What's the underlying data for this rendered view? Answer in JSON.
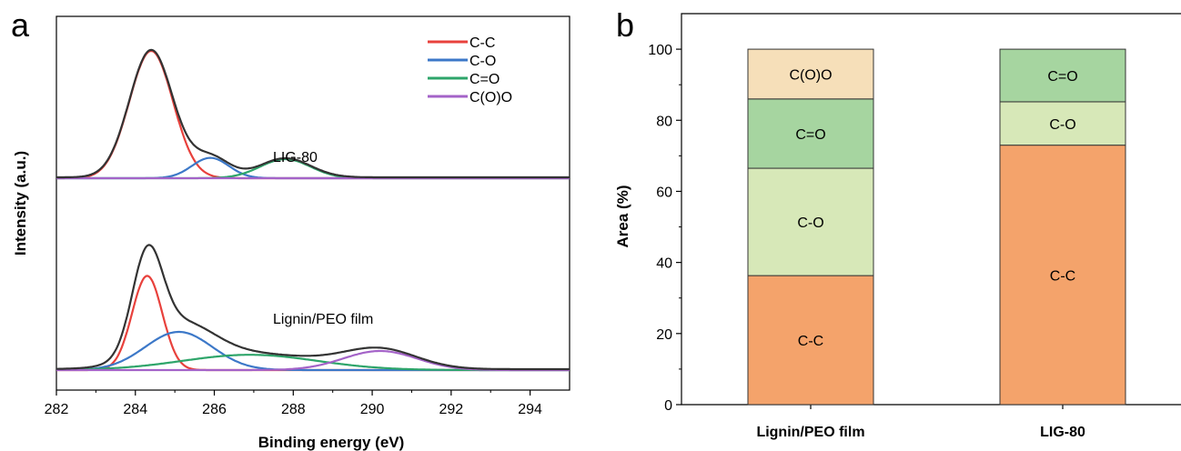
{
  "chart_data": [
    {
      "panel": "a",
      "type": "line",
      "xlabel": "Binding energy (eV)",
      "ylabel": "Intensity (a.u.)",
      "xlim": [
        282,
        295
      ],
      "x_ticks": [
        282,
        284,
        286,
        288,
        290,
        292,
        294
      ],
      "legend": {
        "placement": "top-right",
        "entries": [
          {
            "name": "C-C",
            "color": "#e8413c"
          },
          {
            "name": "C-O",
            "color": "#3c78c8"
          },
          {
            "name": "C=O",
            "color": "#2ea56a"
          },
          {
            "name": "C(O)O",
            "color": "#a463c8"
          }
        ]
      },
      "envelope_color": "#333333",
      "spectra": [
        {
          "label": "LIG-80",
          "components": [
            {
              "name": "C-C",
              "center": 284.4,
              "height": 1.0,
              "fwhm": 1.3
            },
            {
              "name": "C-O",
              "center": 285.9,
              "height": 0.16,
              "fwhm": 1.1
            },
            {
              "name": "C=O",
              "center": 287.8,
              "height": 0.15,
              "fwhm": 1.5
            },
            {
              "name": "C(O)O",
              "center": 290.5,
              "height": 0.0,
              "fwhm": 1.5
            }
          ]
        },
        {
          "label": "Lignin/PEO film",
          "components": [
            {
              "name": "C-C",
              "center": 284.3,
              "height": 0.74,
              "fwhm": 0.9
            },
            {
              "name": "C-O",
              "center": 285.1,
              "height": 0.3,
              "fwhm": 2.0
            },
            {
              "name": "C=O",
              "center": 286.9,
              "height": 0.12,
              "fwhm": 4.0
            },
            {
              "name": "C(O)O",
              "center": 290.2,
              "height": 0.15,
              "fwhm": 2.2
            }
          ]
        }
      ]
    },
    {
      "panel": "b",
      "type": "bar",
      "stacked": true,
      "ylabel": "Area (%)",
      "ylim": [
        0,
        110
      ],
      "y_ticks": [
        0,
        20,
        40,
        60,
        80,
        100
      ],
      "categories": [
        "Lignin/PEO film",
        "LIG-80"
      ],
      "series": [
        {
          "name": "C-C",
          "color": "#f4a36b",
          "values": [
            36.3,
            73.0
          ]
        },
        {
          "name": "C-O",
          "color": "#d7e8b8",
          "values": [
            30.2,
            12.2
          ]
        },
        {
          "name": "C=O",
          "color": "#a6d5a0",
          "values": [
            19.5,
            14.8
          ]
        },
        {
          "name": "C(O)O",
          "color": "#f6dfb9",
          "values": [
            14.0,
            0
          ]
        }
      ]
    }
  ]
}
